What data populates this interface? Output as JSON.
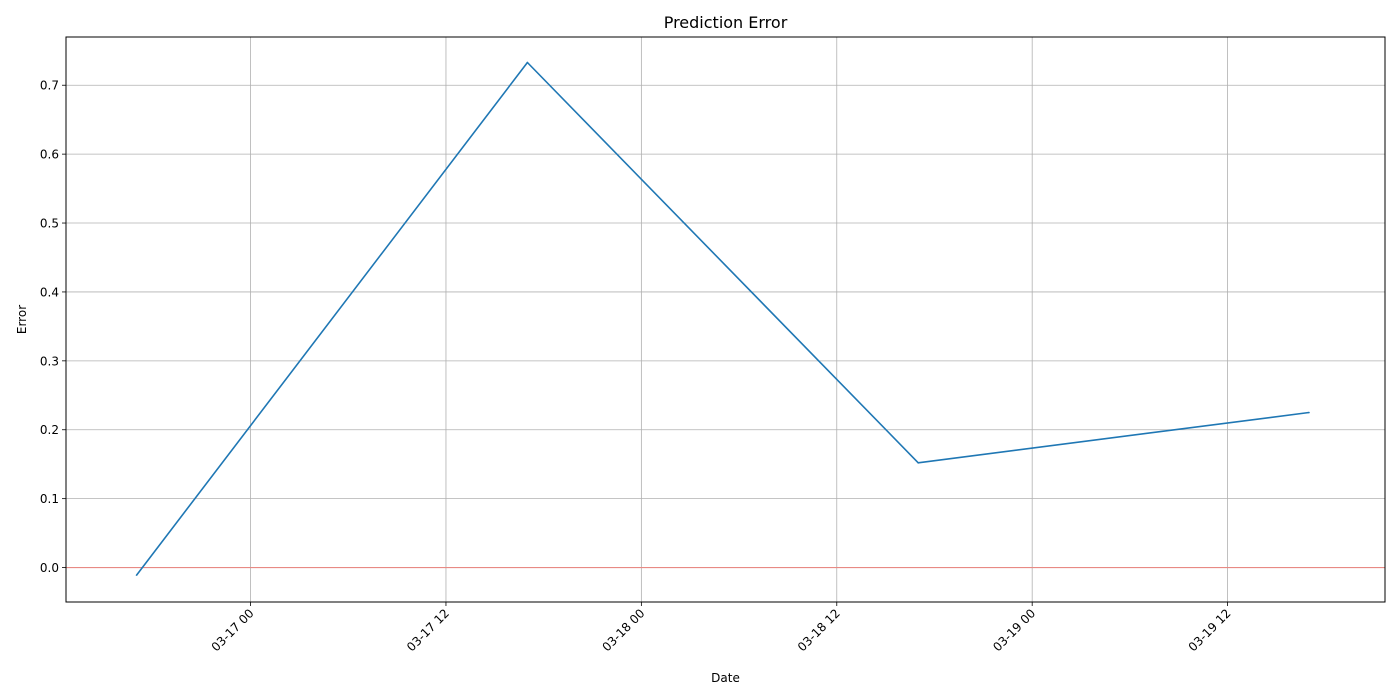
{
  "chart_data": {
    "type": "line",
    "title": "Prediction Error",
    "xlabel": "Date",
    "ylabel": "Error",
    "x_axis_type": "datetime",
    "x": [
      "2026-03-16 17:00",
      "2026-03-17 17:00",
      "2026-03-18 17:00",
      "2026-03-19 17:00"
    ],
    "series": [
      {
        "values": [
          -0.011,
          0.733,
          0.152,
          0.225
        ],
        "color": "#1f77b4"
      }
    ],
    "reference_line": {
      "y": 0.0,
      "color": "#e88a84"
    },
    "xlim": [
      "2026-03-16 12:40",
      "2026-03-19 21:40"
    ],
    "ylim": [
      -0.05,
      0.77
    ],
    "x_ticks": [
      "2026-03-17 00:00",
      "2026-03-17 12:00",
      "2026-03-18 00:00",
      "2026-03-18 12:00",
      "2026-03-19 00:00",
      "2026-03-19 12:00"
    ],
    "x_tick_labels": [
      "03-17 00",
      "03-17 12",
      "03-18 00",
      "03-18 12",
      "03-19 00",
      "03-19 12"
    ],
    "y_ticks": [
      0.0,
      0.1,
      0.2,
      0.3,
      0.4,
      0.5,
      0.6,
      0.7
    ],
    "y_tick_labels": [
      "0.0",
      "0.1",
      "0.2",
      "0.3",
      "0.4",
      "0.5",
      "0.6",
      "0.7"
    ],
    "x_tick_rotation": "45 degrees",
    "grid": true,
    "grid_color": "#b0b0b0"
  }
}
